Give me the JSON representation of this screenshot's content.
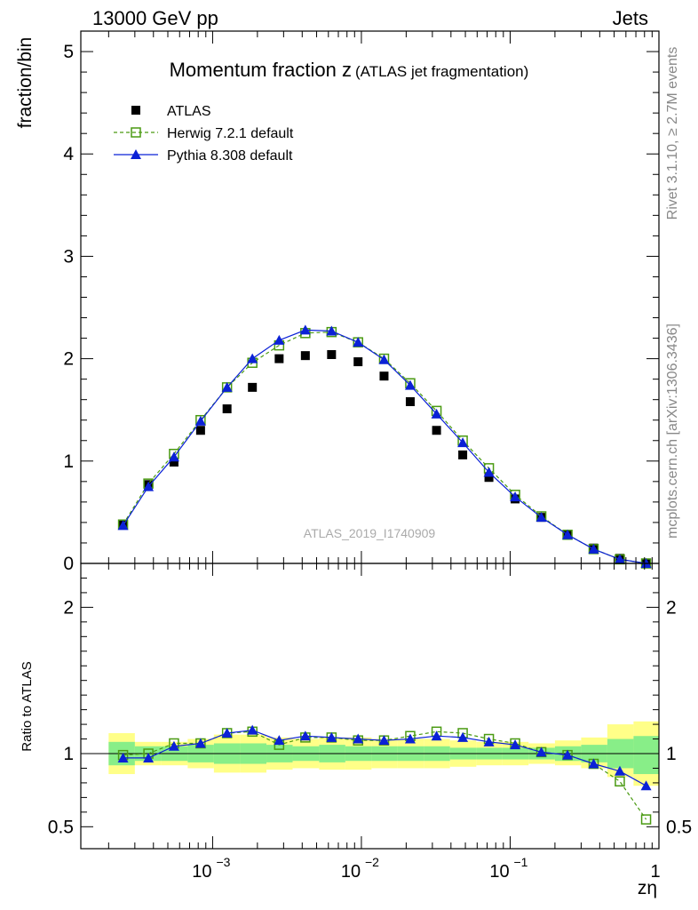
{
  "header": {
    "left": "13000 GeV pp",
    "right": "Jets"
  },
  "side_labels": {
    "rivet": "Rivet 3.1.10, ≥ 2.7M events",
    "source": "mcplots.cern.ch [arXiv:1306.3436]"
  },
  "chart_data": [
    {
      "panel": "main",
      "type": "scatter",
      "title": "Momentum fraction z",
      "subtitle": "(ATLAS jet fragmentation)",
      "ylabel": "fraction/bin",
      "watermark": "ATLAS_2019_I1740909",
      "x_scale": "log",
      "xlim": [
        0.00013,
        1.0
      ],
      "ylim": [
        0,
        5.2
      ],
      "yticks": [
        0,
        1,
        2,
        3,
        4,
        5
      ],
      "legend_position": "top-left",
      "x": [
        0.00025,
        0.00037,
        0.00055,
        0.00083,
        0.00125,
        0.00185,
        0.0028,
        0.0042,
        0.0063,
        0.0095,
        0.0142,
        0.0213,
        0.032,
        0.048,
        0.072,
        0.108,
        0.162,
        0.243,
        0.364,
        0.546,
        0.82
      ],
      "series": [
        {
          "name": "ATLAS",
          "style": "data",
          "color": "#000000",
          "values": [
            0.38,
            0.77,
            0.99,
            1.3,
            1.51,
            1.72,
            2.0,
            2.03,
            2.04,
            1.97,
            1.83,
            1.58,
            1.3,
            1.06,
            0.84,
            0.63,
            0.45,
            0.28,
            0.15,
            0.05,
            0.0
          ]
        },
        {
          "name": "Herwig 7.2.1 default",
          "style": "open-square-dashed",
          "color": "#4a9a12",
          "values": [
            0.38,
            0.78,
            1.07,
            1.4,
            1.72,
            1.96,
            2.13,
            2.25,
            2.26,
            2.16,
            2.0,
            1.76,
            1.49,
            1.2,
            0.93,
            0.67,
            0.46,
            0.28,
            0.14,
            0.04,
            0.0
          ]
        },
        {
          "name": "Pythia 8.308 default",
          "style": "filled-triangle-solid",
          "color": "#0b21d6",
          "values": [
            0.37,
            0.75,
            1.04,
            1.39,
            1.72,
            2.0,
            2.18,
            2.28,
            2.27,
            2.16,
            1.99,
            1.74,
            1.46,
            1.18,
            0.89,
            0.65,
            0.45,
            0.28,
            0.14,
            0.04,
            0.0
          ]
        }
      ]
    },
    {
      "panel": "ratio",
      "type": "line",
      "ylabel": "Ratio to ATLAS",
      "xlabel": "zη",
      "x_scale": "log",
      "xlim": [
        0.00013,
        1.0
      ],
      "ylim": [
        0.35,
        2.3
      ],
      "yticks": [
        0.5,
        1,
        2
      ],
      "xtick_labels": [
        "10",
        "10",
        "10",
        "1"
      ],
      "xtick_exponents": [
        "−3",
        "−2",
        "−1",
        ""
      ],
      "xtick_values": [
        0.001,
        0.01,
        0.1,
        1
      ],
      "x": [
        0.00025,
        0.00037,
        0.00055,
        0.00083,
        0.00125,
        0.00185,
        0.0028,
        0.0042,
        0.0063,
        0.0095,
        0.0142,
        0.0213,
        0.032,
        0.048,
        0.072,
        0.108,
        0.162,
        0.243,
        0.364,
        0.546,
        0.82
      ],
      "bin_edges": [
        0.0002,
        0.0003,
        0.00045,
        0.00068,
        0.00102,
        0.00153,
        0.0023,
        0.00345,
        0.0052,
        0.0078,
        0.0117,
        0.0175,
        0.0263,
        0.0394,
        0.0592,
        0.0888,
        0.133,
        0.2,
        0.3,
        0.45,
        0.675,
        1.0
      ],
      "bands": {
        "total_uncertainty": {
          "color": "#ffff88",
          "low": [
            0.86,
            0.92,
            0.92,
            0.9,
            0.87,
            0.87,
            0.89,
            0.9,
            0.89,
            0.89,
            0.9,
            0.9,
            0.9,
            0.91,
            0.92,
            0.92,
            0.93,
            0.92,
            0.9,
            0.84,
            0.78
          ],
          "high": [
            1.14,
            1.08,
            1.08,
            1.1,
            1.13,
            1.13,
            1.11,
            1.1,
            1.11,
            1.11,
            1.1,
            1.1,
            1.1,
            1.09,
            1.08,
            1.08,
            1.07,
            1.09,
            1.11,
            1.2,
            1.22
          ]
        },
        "statistical_uncertainty": {
          "color": "#88ee88",
          "low": [
            0.92,
            0.95,
            0.95,
            0.94,
            0.93,
            0.93,
            0.94,
            0.95,
            0.94,
            0.95,
            0.95,
            0.95,
            0.95,
            0.96,
            0.96,
            0.96,
            0.96,
            0.95,
            0.94,
            0.9,
            0.86
          ],
          "high": [
            1.08,
            1.05,
            1.05,
            1.06,
            1.07,
            1.07,
            1.06,
            1.05,
            1.06,
            1.05,
            1.05,
            1.05,
            1.05,
            1.04,
            1.04,
            1.04,
            1.04,
            1.05,
            1.06,
            1.1,
            1.12
          ]
        }
      },
      "series": [
        {
          "name": "Herwig 7.2.1 default",
          "style": "open-square-dashed",
          "color": "#4a9a12",
          "values": [
            0.99,
            1.0,
            1.07,
            1.07,
            1.14,
            1.15,
            1.06,
            1.11,
            1.11,
            1.09,
            1.09,
            1.12,
            1.15,
            1.14,
            1.1,
            1.07,
            1.01,
            0.99,
            0.93,
            0.81,
            0.55
          ]
        },
        {
          "name": "Pythia 8.308 default",
          "style": "filled-triangle-solid",
          "color": "#0b21d6",
          "values": [
            0.97,
            0.97,
            1.05,
            1.07,
            1.14,
            1.16,
            1.09,
            1.12,
            1.11,
            1.1,
            1.09,
            1.1,
            1.12,
            1.11,
            1.08,
            1.06,
            1.01,
            0.99,
            0.93,
            0.88,
            0.78
          ]
        }
      ]
    }
  ]
}
